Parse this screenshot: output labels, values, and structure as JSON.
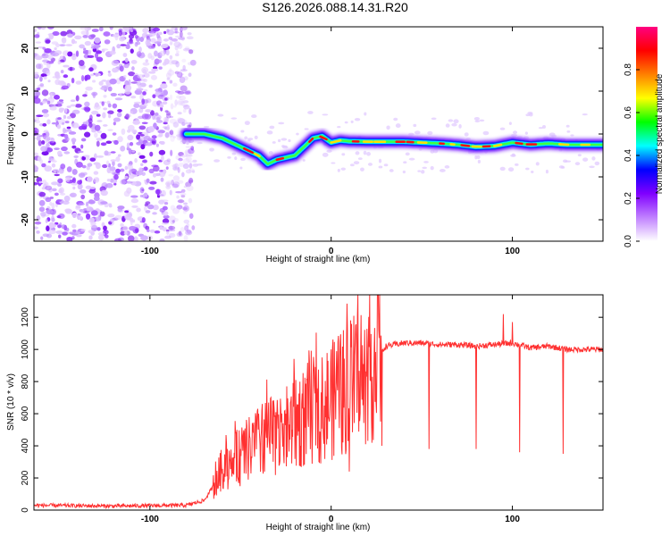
{
  "title": "S126.2026.088.14.31.R20",
  "chart_data": [
    {
      "type": "heatmap",
      "id": "spectrogram",
      "xlabel": "Height of straight line (km)",
      "ylabel": "Frequency (Hz)",
      "xlim": [
        -164,
        150
      ],
      "ylim": [
        -25,
        25
      ],
      "xticks": [
        -100,
        0,
        100
      ],
      "yticks": [
        -20,
        -10,
        0,
        10,
        20
      ],
      "colorbar": {
        "label": "Normalized spectral amplitude",
        "range": [
          0,
          1
        ],
        "ticks": [
          "0.0",
          "0.2",
          "0.4",
          "0.6",
          "0.8"
        ],
        "tick_values": [
          0,
          0.2,
          0.4,
          0.6,
          0.8
        ],
        "colors": [
          "#ffffff",
          "#c080ff",
          "#8000ff",
          "#0000ff",
          "#00ffff",
          "#00ff00",
          "#ffff00",
          "#ff8000",
          "#ff0000",
          "#ff0080"
        ]
      },
      "noise_region_x": [
        -164,
        -80
      ],
      "ridge": {
        "x": [
          -80,
          -70,
          -60,
          -50,
          -40,
          -35,
          -30,
          -20,
          -10,
          -5,
          0,
          5,
          10,
          20,
          40,
          60,
          70,
          80,
          90,
          100,
          110,
          120,
          130,
          140,
          150
        ],
        "freq": [
          0,
          0,
          -1,
          -3,
          -5,
          -7,
          -6,
          -5,
          -1,
          -0.5,
          -2,
          -1.5,
          -1.7,
          -1.8,
          -1.8,
          -2.2,
          -2.5,
          -3,
          -2.8,
          -2,
          -2.5,
          -2.2,
          -2.5,
          -2.5,
          -2.5
        ]
      }
    },
    {
      "type": "line",
      "id": "snr",
      "xlabel": "Height of straight line (km)",
      "ylabel": "SNR (10 * v/v)",
      "xlim": [
        -164,
        150
      ],
      "ylim": [
        0,
        1340
      ],
      "xticks": [
        -100,
        0,
        100
      ],
      "yticks": [
        0,
        200,
        400,
        600,
        800,
        1000,
        1200
      ],
      "color": "#ff3030",
      "series": [
        {
          "name": "SNR",
          "x": [
            -164,
            -120,
            -80,
            -70,
            -65,
            -60,
            -55,
            -50,
            -45,
            -40,
            -35,
            -30,
            -25,
            -20,
            -15,
            -10,
            -5,
            0,
            5,
            10,
            15,
            20,
            25,
            28,
            30,
            40,
            50,
            60,
            70,
            80,
            90,
            100,
            110,
            120,
            130,
            140,
            150
          ],
          "y": [
            30,
            25,
            30,
            60,
            150,
            260,
            300,
            330,
            380,
            420,
            450,
            470,
            500,
            540,
            580,
            620,
            650,
            680,
            720,
            760,
            830,
            890,
            930,
            980,
            1020,
            1040,
            1040,
            1030,
            1030,
            1020,
            1030,
            1040,
            1010,
            1020,
            1000,
            1000,
            1000
          ],
          "spikes_up": [
            [
              -52,
              500
            ],
            [
              -40,
              600
            ],
            [
              -25,
              600
            ],
            [
              -10,
              850
            ],
            [
              -5,
              950
            ],
            [
              0,
              1000
            ],
            [
              5,
              1050
            ],
            [
              10,
              1330
            ],
            [
              95,
              1220
            ],
            [
              100,
              1170
            ]
          ],
          "spikes_down": [
            [
              10,
              240
            ],
            [
              28,
              400
            ],
            [
              54,
              380
            ],
            [
              80,
              380
            ],
            [
              104,
              360
            ],
            [
              128,
              350
            ]
          ]
        }
      ]
    }
  ]
}
